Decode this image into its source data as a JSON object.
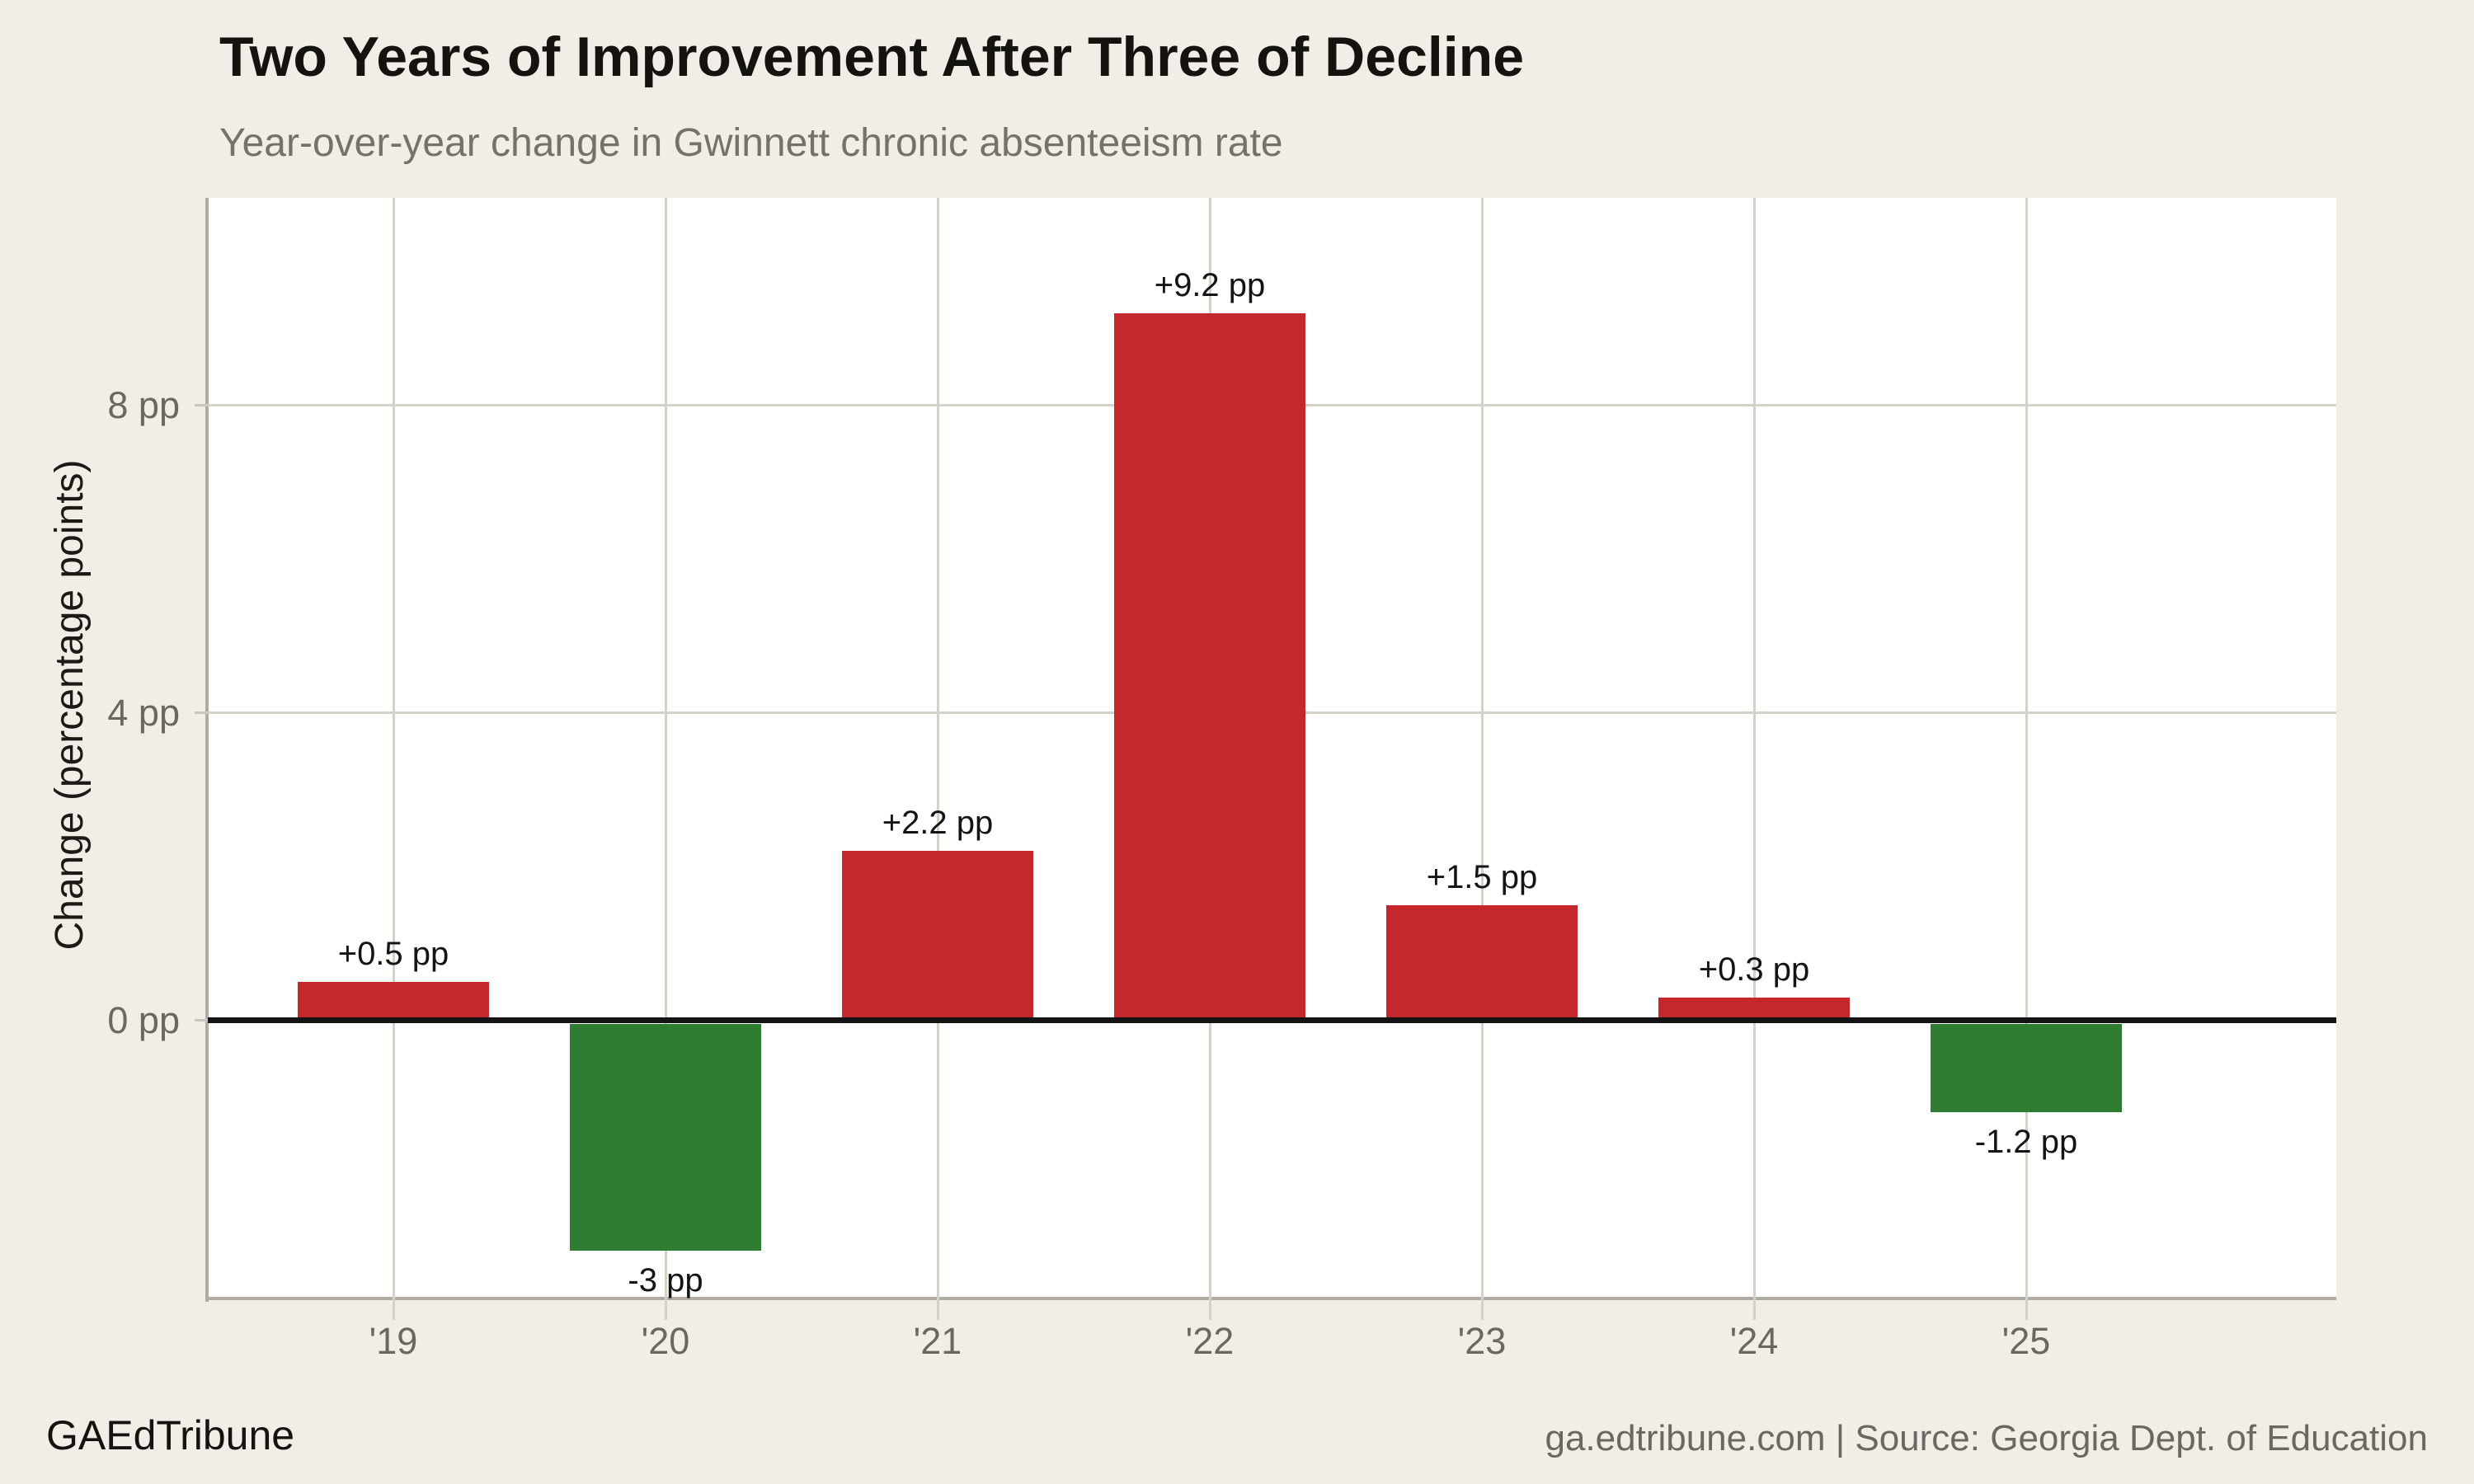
{
  "header": {
    "title": "Two Years of Improvement After Three of Decline",
    "subtitle": "Year-over-year change in Gwinnett chronic absenteeism rate"
  },
  "footer": {
    "brand": "GAEdTribune",
    "source": "ga.edtribune.com | Source: Georgia Dept. of Education"
  },
  "colors": {
    "background": "#f1eee8",
    "plot_background": "#ffffff",
    "positive_bar": "#c5282c",
    "negative_bar": "#2e7d33",
    "gridline": "#d4d1c9",
    "tick": "#c9c6be",
    "spine": "#b0aca3",
    "zero_line": "#141414",
    "text": "#14130f",
    "muted_text": "#6b6762"
  },
  "chart_data": {
    "type": "bar",
    "title": "Two Years of Improvement After Three of Decline",
    "subtitle": "Year-over-year change in Gwinnett chronic absenteeism rate",
    "categories": [
      "'19",
      "'20",
      "'21",
      "'22",
      "'23",
      "'24",
      "'25"
    ],
    "values": [
      0.5,
      -3,
      2.2,
      9.2,
      1.5,
      0.3,
      -1.2
    ],
    "bar_labels": [
      "+0.5 pp",
      "-3 pp",
      "+2.2 pp",
      "+9.2 pp",
      "+1.5 pp",
      "+0.3 pp",
      "-1.2 pp"
    ],
    "bar_color_rule": "positive=red #c5282c, negative=green #2e7d33",
    "xlabel": "",
    "ylabel": "Change (percentage points)",
    "yticks": [
      0,
      4,
      8
    ],
    "ytick_labels": [
      "0 pp",
      "4 pp",
      "8 pp"
    ],
    "ylim": [
      -3.62,
      10.7
    ],
    "grid": true,
    "legend": false,
    "zero_baseline": true
  }
}
